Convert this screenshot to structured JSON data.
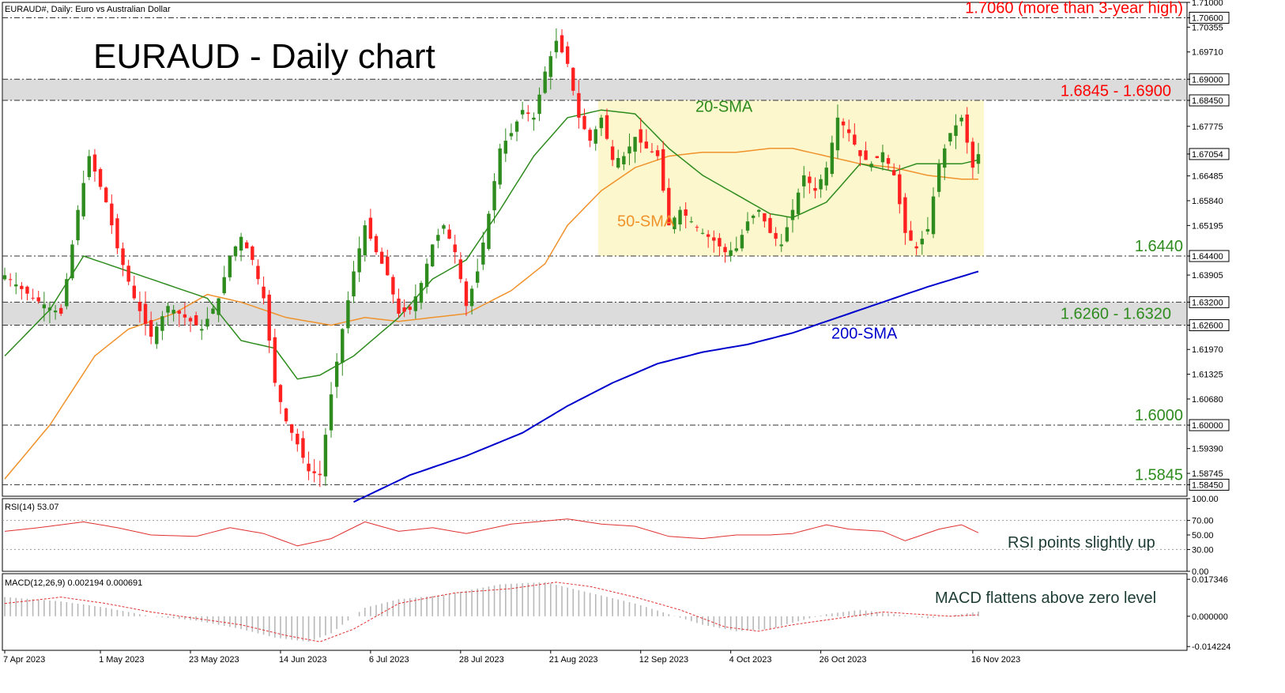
{
  "chart_data": {
    "type": "candlestick",
    "symbol_header": "EURAUD#, Daily:  Euro vs Australian Dollar",
    "title": "EURAUD - Daily chart",
    "ylim": [
      1.5815,
      1.71
    ],
    "price_ticks": [
      "1.71000",
      "1.70355",
      "1.69710",
      "1.67775",
      "1.66485",
      "1.65840",
      "1.65195",
      "1.63905",
      "1.61970",
      "1.61325",
      "1.60680",
      "1.59390",
      "1.58745"
    ],
    "highlighted_ticks": [
      {
        "value": 1.706,
        "label": "1.70600"
      },
      {
        "value": 1.69,
        "label": "1.69000"
      },
      {
        "value": 1.6845,
        "label": "1.68450"
      },
      {
        "value": 1.67054,
        "label": "1.67054"
      },
      {
        "value": 1.644,
        "label": "1.64400"
      },
      {
        "value": 1.632,
        "label": "1.63200"
      },
      {
        "value": 1.626,
        "label": "1.62600"
      },
      {
        "value": 1.6,
        "label": "1.60000"
      },
      {
        "value": 1.5845,
        "label": "1.58450"
      }
    ],
    "levels": [
      {
        "value": 1.706,
        "label": "1.7060 (more than 3-year high)",
        "color": "#ff0000"
      },
      {
        "value": 1.644,
        "label": "1.6440",
        "color": "#2e8b1e"
      },
      {
        "value": 1.6,
        "label": "1.6000",
        "color": "#2e8b1e"
      },
      {
        "value": 1.5845,
        "label": "1.5845",
        "color": "#2e8b1e"
      }
    ],
    "zones": [
      {
        "from": 1.6845,
        "to": 1.69,
        "label": "1.6845 - 1.6900",
        "color": "#ff0000"
      },
      {
        "from": 1.626,
        "to": 1.632,
        "label": "1.6260 - 1.6320",
        "color": "#2e8b1e"
      }
    ],
    "range_box": {
      "from_date": "21 Aug 2023",
      "to_date": "16 Nov 2023",
      "low": 1.644,
      "high": 1.6845
    },
    "x_labels": [
      "7 Apr 2023",
      "1 May 2023",
      "23 May 2023",
      "14 Jun 2023",
      "6 Jul 2023",
      "28 Jul 2023",
      "21 Aug 2023",
      "12 Sep 2023",
      "4 Oct 2023",
      "26 Oct 2023",
      "16 Nov 2023"
    ],
    "close_anchors": [
      [
        0,
        1.639
      ],
      [
        5,
        1.633
      ],
      [
        10,
        1.629
      ],
      [
        13,
        1.656
      ],
      [
        15,
        1.67
      ],
      [
        18,
        1.658
      ],
      [
        20,
        1.646
      ],
      [
        23,
        1.633
      ],
      [
        26,
        1.623
      ],
      [
        29,
        1.631
      ],
      [
        32,
        1.628
      ],
      [
        35,
        1.625
      ],
      [
        38,
        1.633
      ],
      [
        40,
        1.644
      ],
      [
        42,
        1.649
      ],
      [
        44,
        1.643
      ],
      [
        46,
        1.633
      ],
      [
        48,
        1.611
      ],
      [
        50,
        1.601
      ],
      [
        52,
        1.595
      ],
      [
        54,
        1.588
      ],
      [
        56,
        1.587
      ],
      [
        58,
        1.608
      ],
      [
        60,
        1.625
      ],
      [
        62,
        1.64
      ],
      [
        64,
        1.652
      ],
      [
        66,
        1.645
      ],
      [
        68,
        1.639
      ],
      [
        70,
        1.629
      ],
      [
        72,
        1.63
      ],
      [
        74,
        1.637
      ],
      [
        76,
        1.647
      ],
      [
        78,
        1.652
      ],
      [
        80,
        1.645
      ],
      [
        82,
        1.631
      ],
      [
        84,
        1.64
      ],
      [
        86,
        1.655
      ],
      [
        88,
        1.672
      ],
      [
        90,
        1.676
      ],
      [
        92,
        1.682
      ],
      [
        94,
        1.68
      ],
      [
        96,
        1.692
      ],
      [
        98,
        1.7
      ],
      [
        100,
        1.694
      ],
      [
        102,
        1.68
      ],
      [
        104,
        1.674
      ],
      [
        106,
        1.68
      ],
      [
        108,
        1.669
      ],
      [
        110,
        1.67
      ],
      [
        112,
        1.675
      ],
      [
        114,
        1.672
      ],
      [
        116,
        1.67
      ],
      [
        118,
        1.652
      ],
      [
        120,
        1.656
      ],
      [
        122,
        1.653
      ],
      [
        124,
        1.65
      ],
      [
        126,
        1.648
      ],
      [
        128,
        1.645
      ],
      [
        130,
        1.646
      ],
      [
        132,
        1.653
      ],
      [
        134,
        1.656
      ],
      [
        136,
        1.65
      ],
      [
        138,
        1.647
      ],
      [
        140,
        1.656
      ],
      [
        142,
        1.665
      ],
      [
        144,
        1.661
      ],
      [
        146,
        1.667
      ],
      [
        148,
        1.68
      ],
      [
        150,
        1.676
      ],
      [
        152,
        1.67
      ],
      [
        154,
        1.668
      ],
      [
        156,
        1.671
      ],
      [
        158,
        1.665
      ],
      [
        160,
        1.65
      ],
      [
        162,
        1.646
      ],
      [
        164,
        1.651
      ],
      [
        166,
        1.668
      ],
      [
        168,
        1.676
      ],
      [
        170,
        1.68
      ],
      [
        172,
        1.667
      ],
      [
        173,
        1.6705
      ]
    ],
    "sma20_anchors": [
      [
        0,
        1.618
      ],
      [
        8,
        1.63
      ],
      [
        14,
        1.644
      ],
      [
        20,
        1.641
      ],
      [
        28,
        1.637
      ],
      [
        36,
        1.633
      ],
      [
        42,
        1.622
      ],
      [
        48,
        1.62
      ],
      [
        52,
        1.612
      ],
      [
        56,
        1.613
      ],
      [
        62,
        1.618
      ],
      [
        70,
        1.628
      ],
      [
        76,
        1.638
      ],
      [
        82,
        1.643
      ],
      [
        88,
        1.656
      ],
      [
        94,
        1.67
      ],
      [
        100,
        1.68
      ],
      [
        106,
        1.682
      ],
      [
        112,
        1.681
      ],
      [
        118,
        1.672
      ],
      [
        124,
        1.665
      ],
      [
        130,
        1.66
      ],
      [
        136,
        1.655
      ],
      [
        140,
        1.654
      ],
      [
        146,
        1.658
      ],
      [
        152,
        1.668
      ],
      [
        158,
        1.666
      ],
      [
        162,
        1.668
      ],
      [
        166,
        1.668
      ],
      [
        170,
        1.668
      ],
      [
        173,
        1.669
      ]
    ],
    "sma50_anchors": [
      [
        0,
        1.586
      ],
      [
        8,
        1.6
      ],
      [
        16,
        1.618
      ],
      [
        22,
        1.625
      ],
      [
        30,
        1.629
      ],
      [
        36,
        1.634
      ],
      [
        42,
        1.632
      ],
      [
        50,
        1.628
      ],
      [
        58,
        1.626
      ],
      [
        64,
        1.628
      ],
      [
        70,
        1.627
      ],
      [
        76,
        1.628
      ],
      [
        82,
        1.629
      ],
      [
        90,
        1.635
      ],
      [
        96,
        1.642
      ],
      [
        100,
        1.652
      ],
      [
        106,
        1.661
      ],
      [
        112,
        1.667
      ],
      [
        118,
        1.67
      ],
      [
        124,
        1.671
      ],
      [
        130,
        1.671
      ],
      [
        136,
        1.672
      ],
      [
        140,
        1.672
      ],
      [
        146,
        1.67
      ],
      [
        152,
        1.668
      ],
      [
        158,
        1.667
      ],
      [
        164,
        1.665
      ],
      [
        170,
        1.664
      ],
      [
        173,
        1.664
      ]
    ],
    "sma200_anchors": [
      [
        62,
        1.58
      ],
      [
        72,
        1.587
      ],
      [
        82,
        1.592
      ],
      [
        92,
        1.598
      ],
      [
        100,
        1.605
      ],
      [
        108,
        1.611
      ],
      [
        116,
        1.616
      ],
      [
        124,
        1.619
      ],
      [
        132,
        1.621
      ],
      [
        140,
        1.624
      ],
      [
        148,
        1.628
      ],
      [
        156,
        1.632
      ],
      [
        164,
        1.636
      ],
      [
        173,
        1.64
      ]
    ],
    "ma_labels": [
      {
        "text": "20-SMA",
        "color": "#2e8b1e"
      },
      {
        "text": "50-SMA",
        "color": "#f0922b"
      },
      {
        "text": "200-SMA",
        "color": "#0000cc"
      }
    ],
    "rsi": {
      "header": "RSI(14) 53.07",
      "ticks": [
        "100.00",
        "70.00",
        "50.00",
        "30.00",
        "0.00"
      ],
      "annotation": "RSI points slightly up",
      "anchors": [
        [
          0,
          55
        ],
        [
          6,
          60
        ],
        [
          14,
          68
        ],
        [
          20,
          60
        ],
        [
          26,
          50
        ],
        [
          34,
          48
        ],
        [
          40,
          60
        ],
        [
          46,
          52
        ],
        [
          52,
          35
        ],
        [
          58,
          45
        ],
        [
          64,
          68
        ],
        [
          70,
          55
        ],
        [
          76,
          60
        ],
        [
          82,
          52
        ],
        [
          90,
          65
        ],
        [
          100,
          72
        ],
        [
          106,
          65
        ],
        [
          112,
          62
        ],
        [
          118,
          48
        ],
        [
          124,
          45
        ],
        [
          130,
          50
        ],
        [
          136,
          50
        ],
        [
          140,
          52
        ],
        [
          146,
          64
        ],
        [
          150,
          58
        ],
        [
          156,
          55
        ],
        [
          160,
          42
        ],
        [
          166,
          58
        ],
        [
          170,
          64
        ],
        [
          173,
          53
        ]
      ]
    },
    "macd": {
      "header": "MACD(12,26,9) 0.002194 0.000691",
      "ticks": [
        "0.017346",
        "0.000000",
        "-0.014224"
      ],
      "annotation": "MACD flattens above zero level",
      "hist_anchors": [
        [
          0,
          0.009
        ],
        [
          10,
          0.007
        ],
        [
          18,
          0.004
        ],
        [
          26,
          0.0
        ],
        [
          34,
          -0.002
        ],
        [
          42,
          -0.006
        ],
        [
          48,
          -0.01
        ],
        [
          54,
          -0.012
        ],
        [
          58,
          -0.008
        ],
        [
          64,
          0.004
        ],
        [
          70,
          0.008
        ],
        [
          78,
          0.01
        ],
        [
          88,
          0.015
        ],
        [
          96,
          0.016
        ],
        [
          104,
          0.011
        ],
        [
          112,
          0.006
        ],
        [
          118,
          0.001
        ],
        [
          124,
          -0.004
        ],
        [
          130,
          -0.007
        ],
        [
          136,
          -0.006
        ],
        [
          140,
          -0.003
        ],
        [
          146,
          0.001
        ],
        [
          152,
          0.003
        ],
        [
          158,
          0.001
        ],
        [
          164,
          -0.001
        ],
        [
          170,
          0.001
        ],
        [
          173,
          0.0022
        ]
      ],
      "signal_anchors": [
        [
          0,
          0.006
        ],
        [
          10,
          0.009
        ],
        [
          18,
          0.006
        ],
        [
          26,
          0.002
        ],
        [
          34,
          -0.001
        ],
        [
          42,
          -0.004
        ],
        [
          50,
          -0.009
        ],
        [
          56,
          -0.012
        ],
        [
          62,
          -0.006
        ],
        [
          70,
          0.006
        ],
        [
          80,
          0.011
        ],
        [
          90,
          0.013
        ],
        [
          98,
          0.016
        ],
        [
          104,
          0.014
        ],
        [
          112,
          0.009
        ],
        [
          120,
          0.003
        ],
        [
          128,
          -0.005
        ],
        [
          134,
          -0.007
        ],
        [
          140,
          -0.004
        ],
        [
          148,
          -0.001
        ],
        [
          156,
          0.002
        ],
        [
          162,
          0.001
        ],
        [
          168,
          0.0
        ],
        [
          173,
          0.0007
        ]
      ]
    },
    "colors": {
      "bull": "#2e8b1e",
      "bear": "#ff2020",
      "sma20": "#2e8b1e",
      "sma50": "#f0922b",
      "sma200": "#0000cc",
      "zone_fill": "#dcdcdc",
      "range_fill": "#fbf6c3",
      "rsi": "#e03030",
      "macd_hist": "#b8b8b8",
      "macd_signal": "#e03030"
    }
  }
}
